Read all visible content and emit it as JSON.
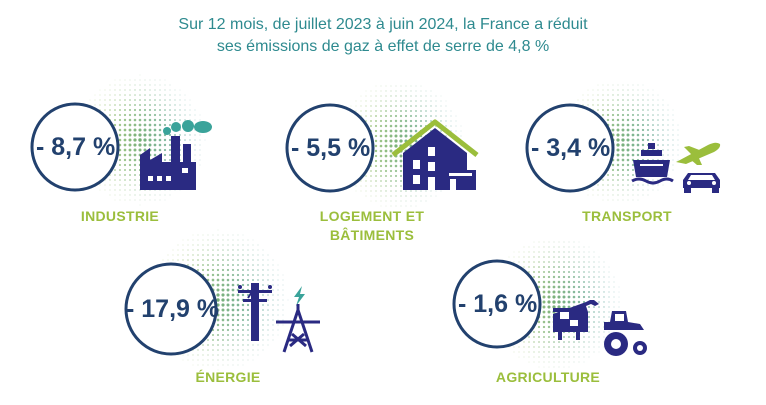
{
  "header": {
    "line1": "Sur 12 mois, de juillet 2023 à juin 2024, la France a réduit",
    "line2": "ses émissions de gaz à effet de serre de 4,8 %"
  },
  "sectors": {
    "industrie": {
      "value": "- 8,7 %",
      "label": "INDUSTRIE",
      "icon": "factory-icon"
    },
    "logement": {
      "value": "- 5,5 %",
      "label1": "LOGEMENT ET",
      "label2": "BÂTIMENTS",
      "icon": "house-icon"
    },
    "transport": {
      "value": "- 3,4 %",
      "label": "TRANSPORT",
      "icons": [
        "ship-icon",
        "airplane-icon",
        "car-icon"
      ]
    },
    "energie": {
      "value": "- 17,9 %",
      "label": "ÉNERGIE",
      "icons": [
        "power-pole-icon",
        "lightning-icon",
        "pylon-icon"
      ]
    },
    "agriculture": {
      "value": "- 1,6 %",
      "label": "AGRICULTURE",
      "icons": [
        "cow-icon",
        "tractor-icon"
      ]
    }
  },
  "colors": {
    "navy": "#22416e",
    "teal": "#2e8a8f",
    "green": "#9bbe3c",
    "icon_navy": "#2a2a82",
    "smoke": "#3aa39a"
  }
}
